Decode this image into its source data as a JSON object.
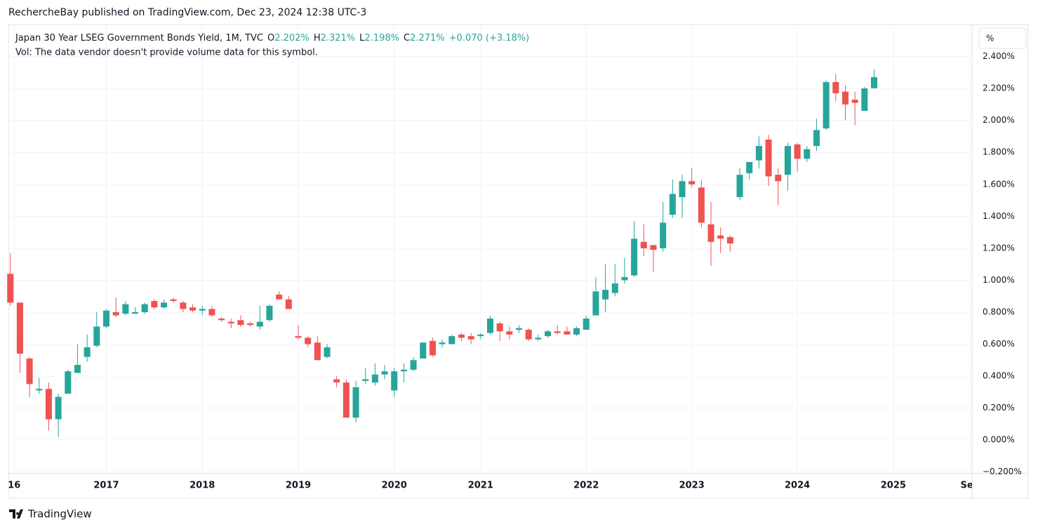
{
  "header": {
    "publisher": "RechercheBay published on TradingView.com, Dec 23, 2024 12:38 UTC-3"
  },
  "chart_data": {
    "type": "candlestick",
    "title": "Japan 30 Year LSEG Government Bonds Yield, 1M, TVC",
    "legend": {
      "o_key": "O",
      "o": "2.202%",
      "h_key": "H",
      "h": "2.321%",
      "l_key": "L",
      "l": "2.198%",
      "c_key": "C",
      "c": "2.271%",
      "change": "+0.070 (+3.18%)"
    },
    "volume_note": "Vol: The data vendor doesn't provide volume data for this symbol.",
    "unit": "%",
    "up_color": "#26a69a",
    "down_color": "#ef5350",
    "grid": true,
    "open": [
      1.04,
      0.86,
      0.51,
      0.31,
      0.32,
      0.13,
      0.29,
      0.42,
      0.52,
      0.59,
      0.71,
      0.8,
      0.79,
      0.79,
      0.8,
      0.87,
      0.83,
      0.88,
      0.86,
      0.83,
      0.81,
      0.82,
      0.76,
      0.74,
      0.75,
      0.73,
      0.71,
      0.75,
      0.91,
      0.88,
      0.65,
      0.64,
      0.61,
      0.52,
      0.38,
      0.36,
      0.14,
      0.37,
      0.36,
      0.41,
      0.31,
      0.43,
      0.44,
      0.51,
      0.62,
      0.6,
      0.6,
      0.66,
      0.65,
      0.65,
      0.67,
      0.73,
      0.68,
      0.69,
      0.69,
      0.63,
      0.65,
      0.68,
      0.68,
      0.66,
      0.69,
      0.78,
      0.88,
      0.92,
      1.0,
      1.03,
      1.24,
      1.22,
      1.2,
      1.41,
      1.52,
      1.62,
      1.58,
      1.35,
      1.28,
      1.27,
      1.52,
      1.67,
      1.75,
      1.88,
      1.66,
      1.66,
      1.85,
      1.76,
      1.84,
      1.95,
      2.24,
      2.18,
      2.13,
      2.06,
      2.202
    ],
    "high": [
      1.17,
      0.86,
      0.52,
      0.39,
      0.36,
      0.29,
      0.44,
      0.6,
      0.66,
      0.8,
      0.82,
      0.89,
      0.87,
      0.83,
      0.86,
      0.88,
      0.88,
      0.89,
      0.87,
      0.85,
      0.84,
      0.84,
      0.77,
      0.76,
      0.78,
      0.74,
      0.84,
      0.85,
      0.93,
      0.9,
      0.72,
      0.65,
      0.65,
      0.6,
      0.4,
      0.38,
      0.37,
      0.45,
      0.48,
      0.47,
      0.45,
      0.48,
      0.52,
      0.61,
      0.64,
      0.63,
      0.66,
      0.67,
      0.67,
      0.67,
      0.78,
      0.74,
      0.71,
      0.72,
      0.7,
      0.66,
      0.69,
      0.72,
      0.71,
      0.71,
      0.78,
      1.02,
      1.1,
      1.1,
      1.14,
      1.37,
      1.35,
      1.22,
      1.49,
      1.63,
      1.66,
      1.7,
      1.63,
      1.49,
      1.33,
      1.28,
      1.7,
      1.74,
      1.9,
      1.91,
      1.7,
      1.86,
      1.86,
      1.84,
      2.01,
      2.25,
      2.29,
      2.22,
      2.18,
      2.21,
      2.321
    ],
    "low": [
      0.84,
      0.42,
      0.27,
      0.29,
      0.06,
      0.02,
      0.29,
      0.42,
      0.49,
      0.58,
      0.7,
      0.77,
      0.78,
      0.79,
      0.79,
      0.82,
      0.82,
      0.86,
      0.8,
      0.8,
      0.78,
      0.77,
      0.74,
      0.7,
      0.71,
      0.71,
      0.69,
      0.74,
      0.88,
      0.82,
      0.63,
      0.58,
      0.5,
      0.51,
      0.33,
      0.14,
      0.11,
      0.35,
      0.34,
      0.38,
      0.27,
      0.36,
      0.43,
      0.51,
      0.52,
      0.58,
      0.6,
      0.62,
      0.6,
      0.63,
      0.66,
      0.62,
      0.63,
      0.67,
      0.62,
      0.62,
      0.64,
      0.66,
      0.66,
      0.65,
      0.69,
      0.78,
      0.8,
      0.9,
      0.98,
      1.02,
      1.15,
      1.05,
      1.18,
      1.39,
      1.39,
      1.58,
      1.33,
      1.09,
      1.17,
      1.18,
      1.5,
      1.63,
      1.7,
      1.59,
      1.47,
      1.56,
      1.68,
      1.74,
      1.81,
      1.94,
      2.12,
      2.0,
      1.97,
      2.06,
      2.198
    ],
    "close": [
      0.86,
      0.54,
      0.35,
      0.32,
      0.13,
      0.27,
      0.43,
      0.47,
      0.58,
      0.71,
      0.81,
      0.78,
      0.85,
      0.8,
      0.85,
      0.83,
      0.86,
      0.87,
      0.82,
      0.81,
      0.82,
      0.78,
      0.75,
      0.73,
      0.72,
      0.72,
      0.74,
      0.84,
      0.88,
      0.82,
      0.64,
      0.6,
      0.5,
      0.58,
      0.36,
      0.14,
      0.33,
      0.38,
      0.41,
      0.43,
      0.43,
      0.44,
      0.5,
      0.61,
      0.53,
      0.61,
      0.65,
      0.64,
      0.63,
      0.66,
      0.76,
      0.68,
      0.66,
      0.7,
      0.63,
      0.64,
      0.68,
      0.67,
      0.66,
      0.7,
      0.76,
      0.93,
      0.94,
      0.98,
      1.02,
      1.26,
      1.2,
      1.19,
      1.36,
      1.54,
      1.62,
      1.6,
      1.36,
      1.24,
      1.26,
      1.23,
      1.66,
      1.74,
      1.84,
      1.65,
      1.62,
      1.84,
      1.76,
      1.82,
      1.94,
      2.24,
      2.17,
      2.1,
      2.11,
      2.2,
      2.271
    ],
    "xlim": [
      -0.2,
      100.2
    ],
    "xticks": [
      {
        "value": 0.4,
        "label": "16"
      },
      {
        "value": 10,
        "label": "2017"
      },
      {
        "value": 20,
        "label": "2018"
      },
      {
        "value": 30,
        "label": "2019"
      },
      {
        "value": 40,
        "label": "2020"
      },
      {
        "value": 49,
        "label": "2021"
      },
      {
        "value": 60,
        "label": "2022"
      },
      {
        "value": 71,
        "label": "2023"
      },
      {
        "value": 82,
        "label": "2024"
      },
      {
        "value": 92,
        "label": "2025"
      },
      {
        "value": 100,
        "label": "Sep"
      }
    ],
    "ylim": [
      -0.21,
      2.6
    ],
    "yticks": [
      {
        "value": -0.2,
        "label": "−0.200%"
      },
      {
        "value": 0,
        "label": "0.000%"
      },
      {
        "value": 0.2,
        "label": "0.200%"
      },
      {
        "value": 0.4,
        "label": "0.400%"
      },
      {
        "value": 0.6,
        "label": "0.600%"
      },
      {
        "value": 0.8,
        "label": "0.800%"
      },
      {
        "value": 1.0,
        "label": "1.000%"
      },
      {
        "value": 1.2,
        "label": "1.200%"
      },
      {
        "value": 1.4,
        "label": "1.400%"
      },
      {
        "value": 1.6,
        "label": "1.600%"
      },
      {
        "value": 1.8,
        "label": "1.800%"
      },
      {
        "value": 2.0,
        "label": "2.000%"
      },
      {
        "value": 2.2,
        "label": "2.200%"
      },
      {
        "value": 2.4,
        "label": "2.400%"
      }
    ]
  },
  "footer": {
    "brand": "TradingView"
  }
}
